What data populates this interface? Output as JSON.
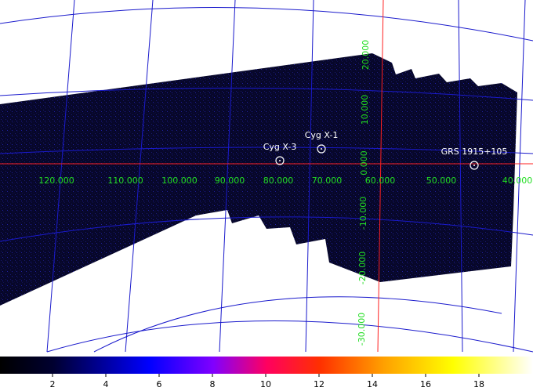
{
  "sources": [
    {
      "label": "Cyg X-3"
    },
    {
      "label": "Cyg X-1"
    },
    {
      "label": "GRS 1915+105"
    }
  ],
  "longitude_labels": [
    "120.000",
    "110.000",
    "100.000",
    "90.000",
    "80.000",
    "70.000",
    "60.000",
    "50.000",
    "40.000"
  ],
  "latitude_labels": [
    "20.000",
    "10.000",
    "0.000",
    "-10.000",
    "-20.000",
    "-30.000"
  ],
  "colorbar": {
    "ticks": [
      2,
      4,
      6,
      8,
      10,
      12,
      14,
      16,
      18
    ]
  }
}
